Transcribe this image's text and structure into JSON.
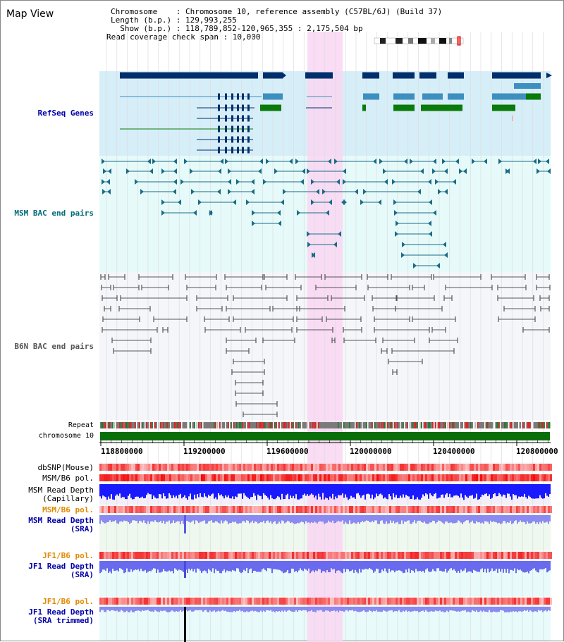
{
  "header": {
    "title": "Map View",
    "chromosome_line": "Chromosome    : Chromosome 10, reference assembly (C57BL/6J) (Build 37)",
    "length_line": "Length (b.p.) : 129,993,255",
    "show_line": "  Show (b.p.) : 118,789,852-120,965,355 : 2,175,504 bp",
    "coverage_line": "Read coverage check span : 10,000"
  },
  "tracks": {
    "refseq": "RefSeq Genes",
    "msm_bac": "MSM BAC end pairs",
    "b6n_bac": "B6N BAC end pairs",
    "repeat": "Repeat",
    "chromosome": "chromosome 10",
    "dbsnp": "dbSNP(Mouse)",
    "msm_b6_pol_1": "MSM/B6 pol.",
    "msm_depth_cap_1": "MSM Read Depth",
    "msm_depth_cap_2": "(Capillary)",
    "msm_b6_pol_2": "MSM/B6 pol.",
    "msm_depth_sra_1": "MSM Read Depth",
    "msm_depth_sra_2": "(SRA)",
    "jf1_b6_pol_1": "JF1/B6 pol.",
    "jf1_depth_sra_1": "JF1 Read Depth",
    "jf1_depth_sra_2": "(SRA)",
    "jf1_b6_pol_2": "JF1/B6 pol.",
    "jf1_depth_trim_1": "JF1 Read Depth",
    "jf1_depth_trim_2": "(SRA trimmed)"
  },
  "axis": {
    "ticks": [
      "118800000",
      "119200000",
      "119600000",
      "120000000",
      "120400000",
      "120800000"
    ]
  },
  "colors": {
    "refseq_bg": "#d6eef8",
    "bac_bg": "#e6fafa",
    "b6n_bg": "#f4f6fa",
    "highlight": "#f9d6f2",
    "gene_dark": "#002f6c",
    "gene_mid": "#3d8fc0",
    "gene_green": "#0a7a0a",
    "msm_bac": "#1a6b85",
    "b6n_bac": "#555555",
    "chrom_green": "#0a6e0a",
    "title_blue": "#0000aa",
    "title_teal": "#006b7a",
    "title_orange": "#e08a00"
  }
}
